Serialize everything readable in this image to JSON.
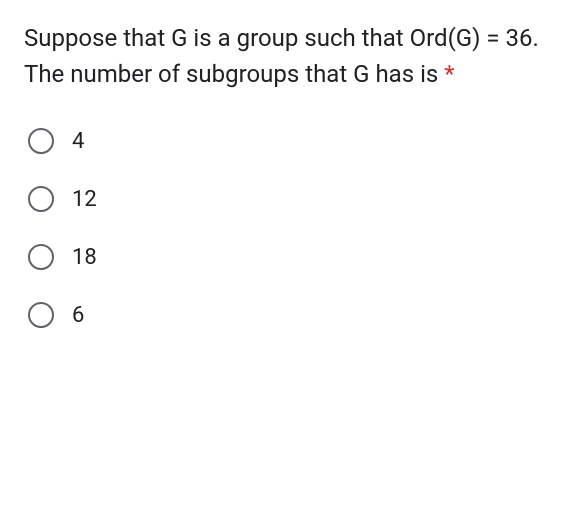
{
  "question": {
    "text": "Suppose that G is a group such that Ord(G) = 36. The number of subgroups that G has is ",
    "required_marker": "*",
    "text_color": "#202124",
    "asterisk_color": "#d93025",
    "font_size": 24
  },
  "options": [
    {
      "label": "4"
    },
    {
      "label": "12"
    },
    {
      "label": "18"
    },
    {
      "label": "6"
    }
  ],
  "styling": {
    "background_color": "#ffffff",
    "radio_border_color": "#5f6368",
    "radio_size": 26,
    "option_font_size": 22,
    "option_gap": 32
  }
}
